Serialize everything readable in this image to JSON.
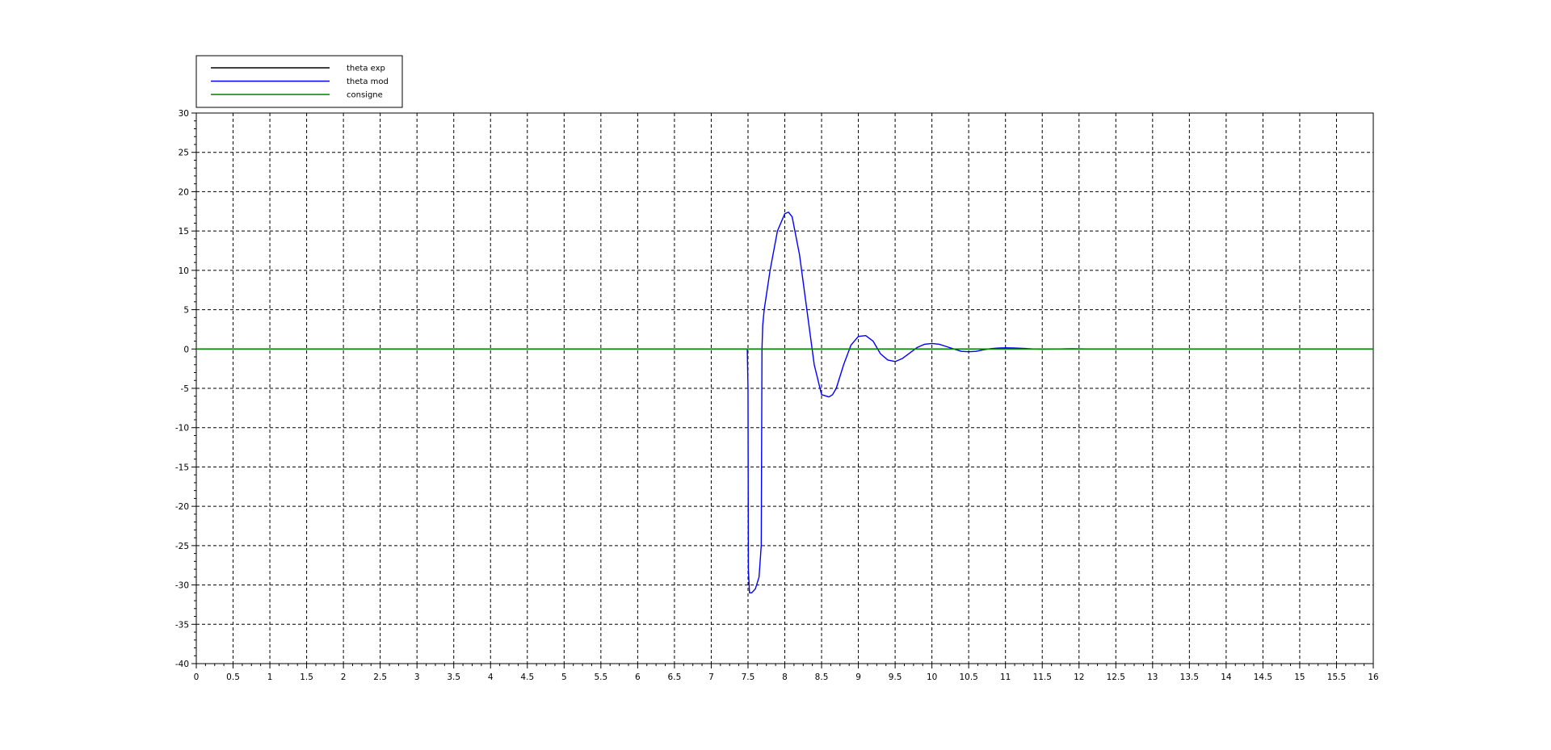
{
  "chart_data": {
    "type": "line",
    "title": "",
    "xlabel": "",
    "ylabel": "",
    "xlim": [
      0,
      16
    ],
    "ylim": [
      -40,
      30
    ],
    "x_major_step": 0.5,
    "y_major_step": 5,
    "x_tick_labels": [
      "0",
      "0.5",
      "1",
      "1.5",
      "2",
      "2.5",
      "3",
      "3.5",
      "4",
      "4.5",
      "5",
      "5.5",
      "6",
      "6.5",
      "7",
      "7.5",
      "8",
      "8.5",
      "9",
      "9.5",
      "10",
      "10.5",
      "11",
      "11.5",
      "12",
      "12.5",
      "13",
      "13.5",
      "14",
      "14.5",
      "15",
      "15.5",
      "16"
    ],
    "y_tick_labels": [
      "30",
      "25",
      "20",
      "15",
      "10",
      "5",
      "0",
      "-5",
      "-10",
      "-15",
      "-20",
      "-25",
      "-30",
      "-35",
      "-40"
    ],
    "grid": true,
    "legend_position": "top-left",
    "series": [
      {
        "name": "theta exp",
        "color": "#000000",
        "x": [],
        "y": []
      },
      {
        "name": "theta mod",
        "color": "#0000ff",
        "x": [
          7.49,
          7.5,
          7.505,
          7.52,
          7.55,
          7.6,
          7.65,
          7.68,
          7.69,
          7.7,
          7.72,
          7.8,
          7.9,
          8.0,
          8.05,
          8.1,
          8.2,
          8.3,
          8.4,
          8.5,
          8.6,
          8.65,
          8.7,
          8.8,
          8.9,
          9.0,
          9.1,
          9.2,
          9.3,
          9.4,
          9.5,
          9.6,
          9.7,
          9.8,
          9.9,
          10.0,
          10.1,
          10.2,
          10.3,
          10.4,
          10.5,
          10.6,
          10.7,
          10.8,
          10.9,
          11.0,
          11.1,
          11.2,
          11.3,
          11.4,
          11.5,
          11.6,
          11.7,
          11.8,
          11.9,
          12.0,
          12.1,
          12.2,
          12.3
        ],
        "y": [
          0,
          -5,
          -28,
          -31,
          -31,
          -30.5,
          -29,
          -25,
          0,
          3,
          5,
          10,
          15,
          17.2,
          17.4,
          16.8,
          12,
          5,
          -2,
          -5.8,
          -6.1,
          -5.8,
          -5,
          -2,
          0.5,
          1.6,
          1.7,
          1,
          -0.6,
          -1.4,
          -1.6,
          -1.2,
          -0.5,
          0.2,
          0.6,
          0.7,
          0.6,
          0.3,
          0,
          -0.3,
          -0.35,
          -0.3,
          -0.1,
          0.05,
          0.12,
          0.15,
          0.14,
          0.1,
          0.05,
          0,
          -0.03,
          -0.02,
          0,
          0.02,
          0.03,
          0.02,
          0.01,
          0,
          0
        ]
      },
      {
        "name": "consigne",
        "color": "#008000",
        "x": [
          0,
          16
        ],
        "y": [
          0,
          0
        ]
      }
    ]
  }
}
